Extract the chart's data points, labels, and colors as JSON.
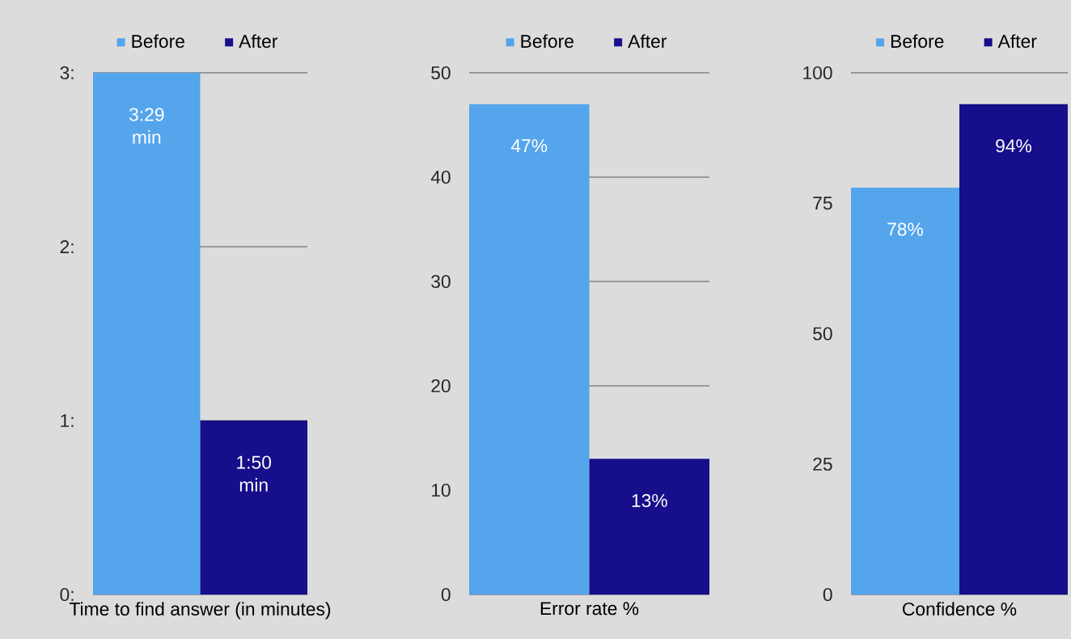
{
  "chart_data": [
    {
      "type": "bar",
      "categories": [
        null
      ],
      "xlabel": "Time to find answer (in minutes)",
      "ylim": [
        0,
        3
      ],
      "yticks": [
        {
          "value": 0,
          "label": "0:"
        },
        {
          "value": 1,
          "label": "1:"
        },
        {
          "value": 2,
          "label": "2:"
        },
        {
          "value": 3,
          "label": "3:"
        }
      ],
      "grid": "y",
      "legend": "top",
      "series": [
        {
          "name": "Before",
          "color": "#55a5ec",
          "values": [
            3
          ],
          "value_labels": [
            "3:29 min"
          ]
        },
        {
          "name": "After",
          "color": "#160e8a",
          "values": [
            1
          ],
          "value_labels": [
            "1:50 min"
          ]
        }
      ]
    },
    {
      "type": "bar",
      "categories": [
        null
      ],
      "xlabel": "Error rate %",
      "ylim": [
        0,
        50
      ],
      "yticks": [
        0,
        10,
        20,
        30,
        40,
        50
      ],
      "grid": "y",
      "legend": "top",
      "series": [
        {
          "name": "Before",
          "color": "#55a5ec",
          "values": [
            47
          ],
          "value_labels": [
            "47%"
          ]
        },
        {
          "name": "After",
          "color": "#160e8a",
          "values": [
            13
          ],
          "value_labels": [
            "13%"
          ]
        }
      ]
    },
    {
      "type": "bar",
      "categories": [
        null
      ],
      "xlabel": "Confidence %",
      "ylim": [
        0,
        100
      ],
      "yticks": [
        0,
        25,
        50,
        75,
        100
      ],
      "grid": "y",
      "legend": "top",
      "series": [
        {
          "name": "Before",
          "color": "#55a5ec",
          "values": [
            78
          ],
          "value_labels": [
            "78%"
          ]
        },
        {
          "name": "After",
          "color": "#160e8a",
          "values": [
            94
          ],
          "value_labels": [
            "94%"
          ]
        }
      ]
    }
  ]
}
